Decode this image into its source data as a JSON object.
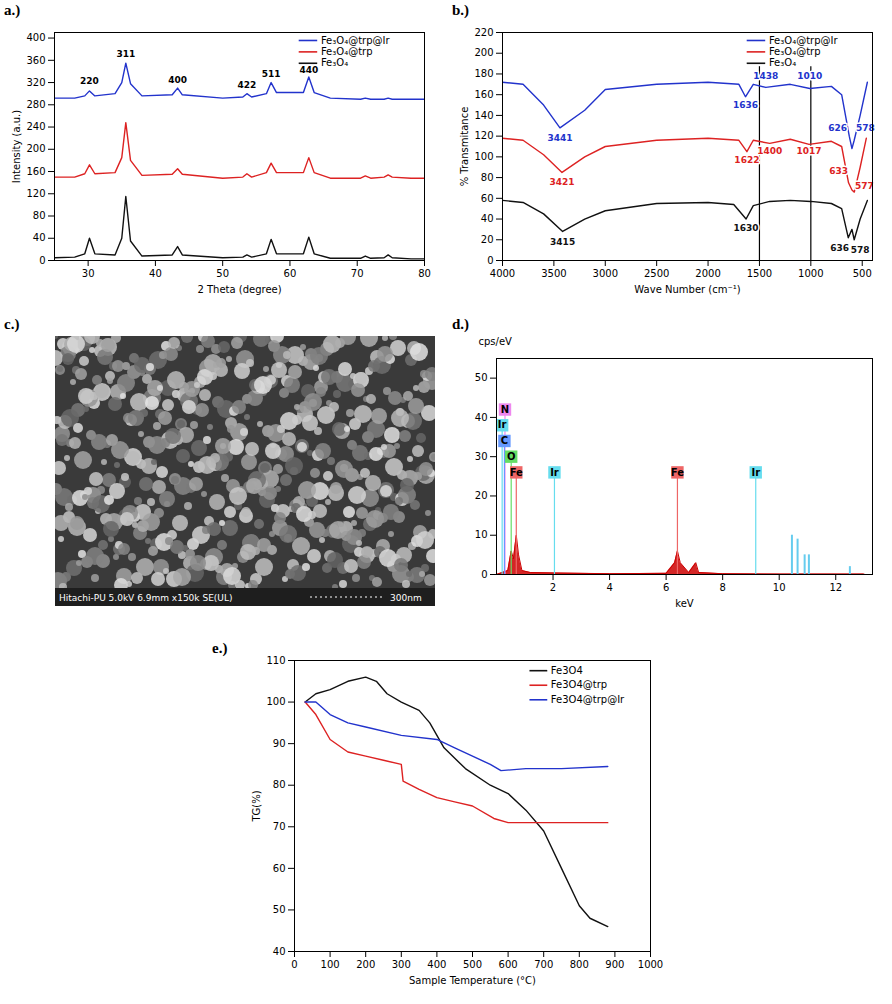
{
  "chart_data": [
    {
      "type": "line",
      "panel": "a.)",
      "x_label": "2 Theta (degree)",
      "y_label": "Intensity (a.u.)",
      "xlim": [
        25,
        80
      ],
      "xticks": [
        30,
        40,
        50,
        60,
        70,
        80
      ],
      "ylim": [
        0,
        410
      ],
      "yticks": [
        0,
        40,
        80,
        120,
        160,
        200,
        240,
        280,
        320,
        360,
        400
      ],
      "legend": "top-right",
      "x": [
        25,
        28,
        29.5,
        30.2,
        31,
        34,
        35,
        35.6,
        36.3,
        38,
        42.5,
        43.3,
        44,
        50,
        53,
        53.6,
        54.3,
        56.5,
        57.2,
        58,
        62,
        62.8,
        63.6,
        66,
        70.5,
        71.2,
        72,
        74,
        74.6,
        75.2,
        78,
        80
      ],
      "series": [
        {
          "name": "Fe₃O₄@trp@Ir",
          "color": "#2233cc",
          "values": [
            292,
            292,
            296,
            305,
            296,
            300,
            320,
            355,
            318,
            296,
            298,
            310,
            298,
            292,
            294,
            300,
            294,
            300,
            320,
            302,
            302,
            330,
            302,
            292,
            290,
            292,
            290,
            290,
            292,
            290,
            290,
            290
          ]
        },
        {
          "name": "Fe₃O₄@trp",
          "color": "#dd2222",
          "values": [
            150,
            150,
            156,
            172,
            156,
            158,
            185,
            248,
            180,
            153,
            155,
            165,
            155,
            148,
            150,
            156,
            150,
            158,
            175,
            158,
            158,
            185,
            158,
            148,
            148,
            152,
            148,
            150,
            154,
            150,
            148,
            148
          ]
        },
        {
          "name": "Fe₃O₄",
          "color": "#111111",
          "values": [
            5,
            6,
            12,
            40,
            12,
            10,
            40,
            115,
            35,
            8,
            10,
            25,
            10,
            5,
            6,
            10,
            6,
            12,
            38,
            12,
            12,
            42,
            12,
            4,
            4,
            8,
            4,
            5,
            10,
            5,
            3,
            3
          ]
        }
      ],
      "annotations": [
        {
          "text": "220",
          "x": 30.2,
          "y": 322
        },
        {
          "text": "311",
          "x": 35.6,
          "y": 372
        },
        {
          "text": "400",
          "x": 43.3,
          "y": 325
        },
        {
          "text": "422",
          "x": 53.6,
          "y": 315
        },
        {
          "text": "511",
          "x": 57.2,
          "y": 336
        },
        {
          "text": "440",
          "x": 62.8,
          "y": 342
        }
      ]
    },
    {
      "type": "line",
      "panel": "b.)",
      "x_label": "Wave Number (cm⁻¹)",
      "y_label": "% Transmitance",
      "xlim": [
        4000,
        400
      ],
      "xticks": [
        4000,
        3500,
        3000,
        2500,
        2000,
        1500,
        1000,
        500
      ],
      "ylim": [
        0,
        220
      ],
      "yticks": [
        0,
        20,
        40,
        60,
        80,
        100,
        120,
        140,
        160,
        180,
        200,
        220
      ],
      "legend": "top-right",
      "vlines": [
        1500,
        1000
      ],
      "series": [
        {
          "name": "Fe₃O₄@trp@Ir",
          "color": "#2233cc",
          "x": [
            4000,
            3800,
            3600,
            3441,
            3200,
            3000,
            2500,
            2000,
            1700,
            1636,
            1560,
            1438,
            1200,
            1010,
            800,
            700,
            626,
            600,
            578,
            520,
            450
          ],
          "values": [
            172,
            170,
            150,
            128,
            145,
            165,
            170,
            172,
            170,
            158,
            170,
            167,
            170,
            166,
            168,
            160,
            120,
            108,
            116,
            140,
            172
          ]
        },
        {
          "name": "Fe₃O₄@trp",
          "color": "#dd2222",
          "x": [
            4000,
            3800,
            3600,
            3421,
            3200,
            3000,
            2500,
            2000,
            1700,
            1622,
            1560,
            1400,
            1200,
            1017,
            800,
            700,
            633,
            600,
            577,
            520,
            460
          ],
          "values": [
            118,
            116,
            102,
            85,
            100,
            110,
            116,
            118,
            116,
            105,
            116,
            113,
            117,
            112,
            115,
            110,
            75,
            68,
            66,
            90,
            118
          ]
        },
        {
          "name": "Fe₃O₄",
          "color": "#111111",
          "x": [
            4000,
            3800,
            3600,
            3415,
            3200,
            3000,
            2500,
            2000,
            1750,
            1630,
            1560,
            1400,
            1200,
            1000,
            800,
            700,
            636,
            600,
            578,
            520,
            450
          ],
          "values": [
            58,
            56,
            45,
            28,
            40,
            48,
            55,
            56,
            54,
            40,
            53,
            57,
            58,
            57,
            55,
            50,
            22,
            30,
            20,
            40,
            58
          ]
        }
      ],
      "annotations": [
        {
          "text": "3441",
          "x": 3441,
          "y": 118,
          "color": "#2233cc"
        },
        {
          "text": "1636",
          "x": 1636,
          "y": 150,
          "color": "#2233cc"
        },
        {
          "text": "1438",
          "x": 1438,
          "y": 178,
          "color": "#2233cc"
        },
        {
          "text": "1010",
          "x": 1010,
          "y": 178,
          "color": "#2233cc"
        },
        {
          "text": "626",
          "x": 740,
          "y": 128,
          "color": "#2233cc"
        },
        {
          "text": "578",
          "x": 470,
          "y": 128,
          "color": "#2233cc"
        },
        {
          "text": "3421",
          "x": 3421,
          "y": 76,
          "color": "#dd2222"
        },
        {
          "text": "1622",
          "x": 1622,
          "y": 97,
          "color": "#dd2222"
        },
        {
          "text": "1400",
          "x": 1400,
          "y": 106,
          "color": "#dd2222"
        },
        {
          "text": "1017",
          "x": 1017,
          "y": 106,
          "color": "#dd2222"
        },
        {
          "text": "633",
          "x": 730,
          "y": 86,
          "color": "#dd2222"
        },
        {
          "text": "577",
          "x": 480,
          "y": 72,
          "color": "#dd2222"
        },
        {
          "text": "3415",
          "x": 3415,
          "y": 18,
          "color": "#111111"
        },
        {
          "text": "1630",
          "x": 1630,
          "y": 31,
          "color": "#111111"
        },
        {
          "text": "636",
          "x": 720,
          "y": 12,
          "color": "#111111"
        },
        {
          "text": "578",
          "x": 520,
          "y": 10,
          "color": "#111111"
        }
      ]
    },
    {
      "type": "image",
      "panel": "c.)",
      "caption": "Hitachi-PU 5.0kV 6.9mm x150k SE(UL)",
      "scale_bar": "300nm"
    },
    {
      "type": "line",
      "panel": "d.)",
      "x_label": "keV",
      "y_label": "cps/eV",
      "xlim": [
        0,
        13.3
      ],
      "xticks": [
        2,
        4,
        6,
        8,
        10,
        12
      ],
      "ylim": [
        0,
        55
      ],
      "yticks": [
        0,
        10,
        20,
        30,
        40,
        50
      ],
      "series": [
        {
          "type": "area",
          "color": "#cc0000",
          "x": [
            0,
            0.2,
            0.4,
            0.52,
            0.6,
            0.7,
            0.78,
            0.9,
            1.2,
            2,
            4,
            6,
            6.3,
            6.4,
            6.5,
            6.8,
            7.05,
            7.15,
            8,
            10,
            13
          ],
          "values": [
            0,
            0.5,
            1,
            6,
            4,
            10,
            5,
            1,
            0.5,
            0.4,
            0.2,
            0.3,
            3,
            6,
            3,
            0.5,
            3,
            0.5,
            0.2,
            0.1,
            0.1
          ]
        },
        {
          "type": "spike",
          "color": "#66ccee",
          "x": [
            10.45,
            10.65,
            10.9,
            11.05,
            12.5
          ],
          "values": [
            10,
            9,
            5,
            5,
            2
          ]
        }
      ],
      "elements": [
        {
          "label": "N",
          "x": 0.3,
          "y": 42,
          "color": "#ee88ee"
        },
        {
          "label": "Ir",
          "x": 0.2,
          "y": 38,
          "color": "#66ddee"
        },
        {
          "label": "C",
          "x": 0.28,
          "y": 34,
          "color": "#6699ff"
        },
        {
          "label": "O",
          "x": 0.52,
          "y": 30,
          "color": "#66dd66"
        },
        {
          "label": "Fe",
          "x": 0.7,
          "y": 26,
          "color": "#ee6666"
        },
        {
          "label": "Ir",
          "x": 2.05,
          "y": 26,
          "color": "#66ddee"
        },
        {
          "label": "Fe",
          "x": 6.4,
          "y": 26,
          "color": "#ee6666"
        },
        {
          "label": "Ir",
          "x": 9.17,
          "y": 26,
          "color": "#66ddee"
        }
      ]
    },
    {
      "type": "line",
      "panel": "e.)",
      "x_label": "Sample Temperature (°C)",
      "y_label": "TG(%)",
      "xlim": [
        0,
        1000
      ],
      "xticks": [
        0,
        100,
        200,
        300,
        400,
        500,
        600,
        700,
        800,
        900,
        1000
      ],
      "ylim": [
        40,
        110
      ],
      "yticks": [
        40,
        50,
        60,
        70,
        80,
        90,
        100,
        110
      ],
      "legend": "top-right",
      "series": [
        {
          "name": "Fe3O4",
          "color": "#111111",
          "x": [
            30,
            60,
            100,
            150,
            200,
            230,
            260,
            300,
            350,
            380,
            420,
            480,
            550,
            600,
            650,
            700,
            750,
            800,
            830,
            880
          ],
          "values": [
            100,
            102,
            103,
            105,
            106,
            105,
            102,
            100,
            98,
            95,
            89,
            84,
            80,
            78,
            74,
            69,
            60,
            51,
            48,
            46
          ]
        },
        {
          "name": "Fe3O4@trp",
          "color": "#dd2222",
          "x": [
            30,
            60,
            100,
            150,
            200,
            250,
            300,
            305,
            350,
            400,
            450,
            500,
            560,
            600,
            700,
            880
          ],
          "values": [
            100,
            97,
            91,
            88,
            87,
            86,
            85,
            81,
            79,
            77,
            76,
            75,
            72,
            71,
            71,
            71
          ]
        },
        {
          "name": "Fe3O4@trp@Ir",
          "color": "#2233cc",
          "x": [
            30,
            60,
            100,
            150,
            200,
            300,
            400,
            450,
            500,
            550,
            580,
            650,
            750,
            880
          ],
          "values": [
            100,
            100,
            97,
            95,
            94,
            92,
            91,
            89,
            87,
            85,
            83.5,
            84,
            84,
            84.5
          ]
        }
      ]
    }
  ]
}
